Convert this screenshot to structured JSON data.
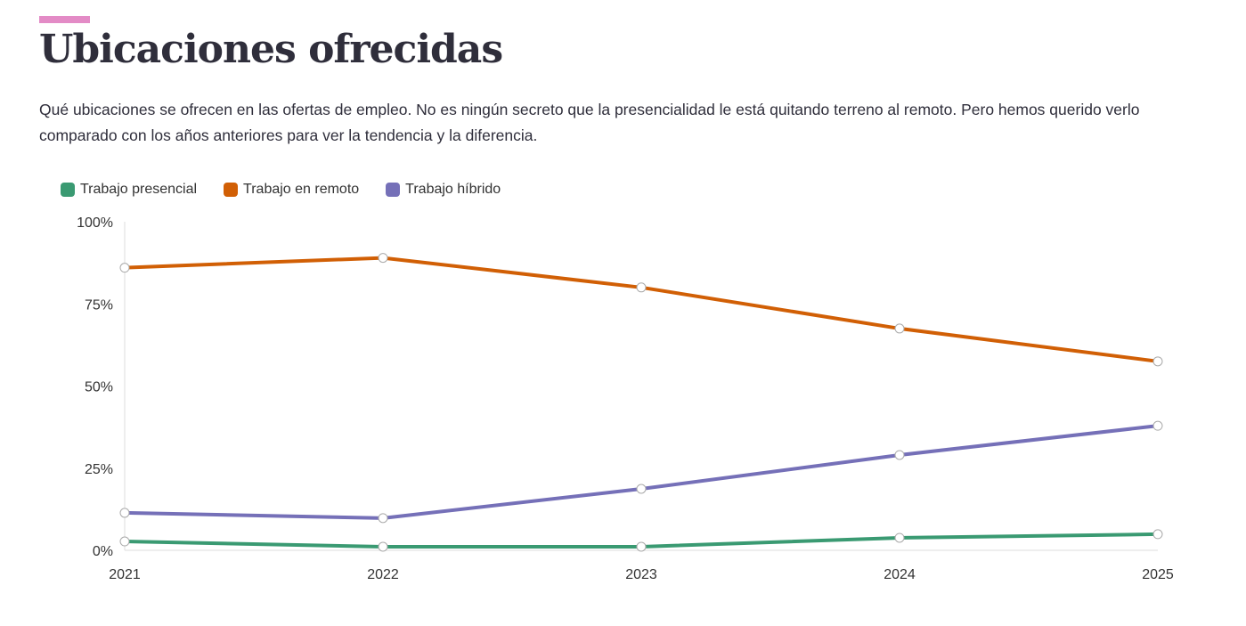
{
  "header": {
    "title": "Ubicaciones ofrecidas",
    "description": "Qué ubicaciones se ofrecen en las ofertas de empleo. No es ningún secreto que la presencialidad le está quitando terreno al remoto. Pero hemos querido verlo comparado con los años anteriores para ver la tendencia y la diferencia.",
    "accent_color": "#e38bc6"
  },
  "chart_data": {
    "type": "line",
    "title": "Ubicaciones ofrecidas",
    "xlabel": "",
    "ylabel": "",
    "x": [
      "2021",
      "2022",
      "2023",
      "2024",
      "2025"
    ],
    "ylim": [
      0,
      100
    ],
    "yticks": [
      {
        "v": 0,
        "label": "0%"
      },
      {
        "v": 25,
        "label": "25%"
      },
      {
        "v": 50,
        "label": "50%"
      },
      {
        "v": 75,
        "label": "75%"
      },
      {
        "v": 100,
        "label": "100%"
      }
    ],
    "legend_position": "top-left",
    "grid": false,
    "series": [
      {
        "name": "Trabajo presencial",
        "color": "#3a9a72",
        "values": [
          2.7,
          1.1,
          1.1,
          3.8,
          4.9
        ]
      },
      {
        "name": "Trabajo en remoto",
        "color": "#d15f05",
        "values": [
          86,
          89,
          80,
          67.5,
          57.5
        ]
      },
      {
        "name": "Trabajo híbrido",
        "color": "#7570b8",
        "values": [
          11.4,
          9.8,
          18.7,
          29,
          37.9
        ]
      }
    ]
  }
}
